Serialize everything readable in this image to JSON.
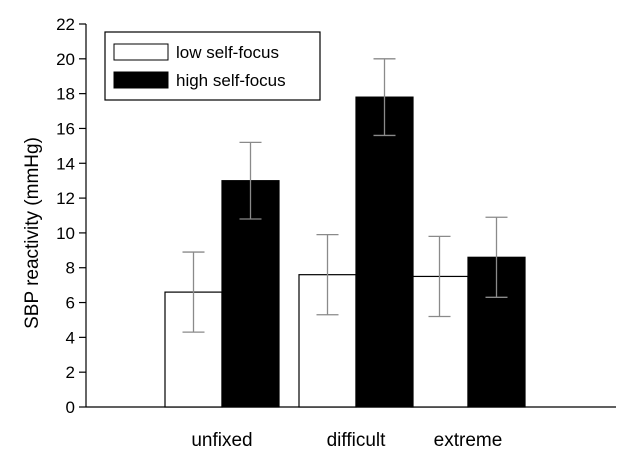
{
  "chart_data": {
    "type": "bar",
    "title": "",
    "xlabel": "",
    "ylabel": "SBP reactivity (mmHg)",
    "ylim": [
      0,
      22
    ],
    "yticks": [
      0,
      2,
      4,
      6,
      8,
      10,
      12,
      14,
      16,
      18,
      20,
      22
    ],
    "categories": [
      "unfixed",
      "difficult",
      "extreme"
    ],
    "series": [
      {
        "name": "low self-focus",
        "fill": "#ffffff",
        "values": [
          6.6,
          7.6,
          7.5
        ],
        "error": [
          2.3,
          2.3,
          2.3
        ]
      },
      {
        "name": "high self-focus",
        "fill": "#000000",
        "values": [
          13.0,
          17.8,
          8.6
        ],
        "error": [
          2.2,
          2.2,
          2.3
        ]
      }
    ],
    "legend": {
      "position": "top-left",
      "framed": true
    },
    "grid": false
  }
}
